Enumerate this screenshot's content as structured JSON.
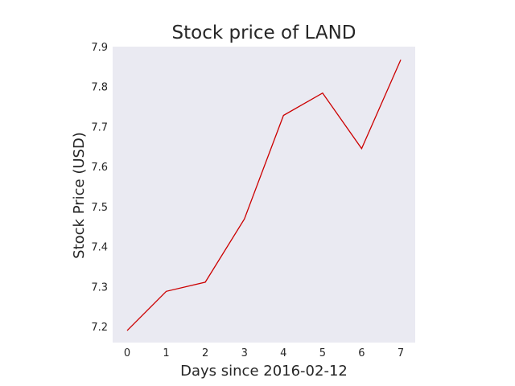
{
  "chart_data": {
    "type": "line",
    "title": "Stock price of LAND",
    "xlabel": "Days since 2016-02-12",
    "ylabel": "Stock Price (USD)",
    "x": [
      0,
      1,
      2,
      3,
      4,
      5,
      6,
      7
    ],
    "xticks": [
      0,
      1,
      2,
      3,
      4,
      5,
      6,
      7
    ],
    "xlim": [
      -0.37,
      7.37
    ],
    "ylim": [
      7.16,
      7.9
    ],
    "yticks": [
      7.2,
      7.3,
      7.4,
      7.5,
      7.6,
      7.7,
      7.8,
      7.9
    ],
    "series": [
      {
        "values": [
          7.19,
          7.288,
          7.311,
          7.469,
          7.728,
          7.784,
          7.645,
          7.867
        ],
        "color": "#cc0000"
      }
    ],
    "grid": false,
    "plot_background": "#eaeaf2"
  }
}
